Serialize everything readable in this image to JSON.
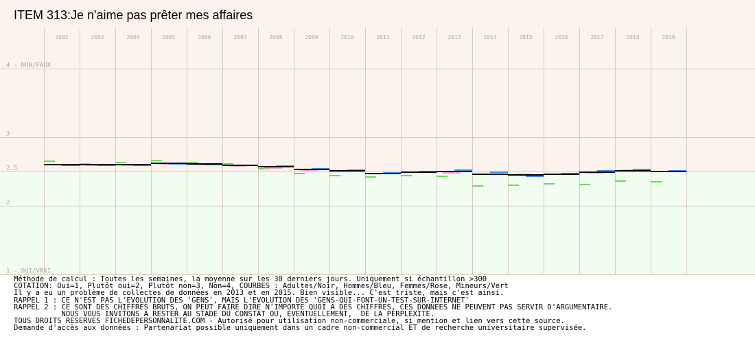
{
  "title": "ITEM 313:Je n'aime pas prêter mes affaires",
  "colors": {
    "upper_band": "#fdf3ee",
    "lower_band": "#f0fdef",
    "grid": "#d9c9c4",
    "axis_text": "#b0a6a6",
    "adults": "#000000",
    "men": "#3d8ef0",
    "women": "#f5a2c5",
    "minors": "#66dd55"
  },
  "notes": [
    "Méthode de calcul : Toutes les semaines, la moyenne sur les 30 derniers jours. Uniquement si échantillon >300",
    "COTATION: Oui=1, Plutôt oui=2, Plutôt non=3, Non=4, COURBES : Adultes/Noir, Hommes/Bleu, Femmes/Rose, Mineurs/Vert",
    "Il y a eu un problème de collectes de données en 2013 et en 2015. Bien visible... C'est triste, mais c'est ainsi.",
    "RAPPEL 1 : CE N'EST PAS L'EVOLUTION DES 'GENS', MAIS L'EVOLUTION DES 'GENS-QUI-FONT-UN-TEST-SUR-INTERNET'",
    "RAPPEL 2 : CE SONT DES CHIFFRES BRUTS, ON PEUT FAIRE DIRE N'IMPORTE QUOI A DES CHIFFRES, CES DONNEES NE PEUVENT PAS SERVIR D'ARGUMENTAIRE.",
    "           NOUS VOUS INVITONS A RESTER AU STADE DU CONSTAT OU, EVENTUELLEMENT,  DE LA PERPLEXITE.",
    "TOUS DROITS RESERVES FICHEDEPERSONNALITE.COM - Autorisé pour utilisation non-commerciale, si mention et lien vers cette source.",
    "Demande d'accès aux données : Partenariat possible uniquement dans un cadre non-commercial ET de recherche universitaire supervisée."
  ],
  "chart_data": {
    "type": "line",
    "categories": [
      "2002",
      "2003",
      "2004",
      "2005",
      "2006",
      "2007",
      "2008",
      "2009",
      "2010",
      "2011",
      "2012",
      "2013",
      "2014",
      "2015",
      "2016",
      "2017",
      "2018",
      "2019"
    ],
    "ylim": [
      1,
      4
    ],
    "y_ticks": [
      {
        "value": 4,
        "label": "4 - NON/FAUX"
      },
      {
        "value": 3,
        "label": "3"
      },
      {
        "value": 2.5,
        "label": "2.5"
      },
      {
        "value": 2,
        "label": "2"
      },
      {
        "value": 1,
        "label": "1 - OUI/VRAI"
      }
    ],
    "background_split": 2.5,
    "grid": true,
    "series": [
      {
        "name": "Adultes",
        "color": "#000000",
        "values": [
          2.6,
          2.6,
          2.6,
          2.62,
          2.61,
          2.59,
          2.57,
          2.53,
          2.51,
          2.47,
          2.49,
          2.5,
          2.46,
          2.45,
          2.46,
          2.49,
          2.51,
          2.5
        ]
      },
      {
        "name": "Hommes",
        "color": "#3d8ef0",
        "values": [
          2.59,
          2.59,
          2.59,
          2.61,
          2.6,
          2.59,
          2.58,
          2.54,
          2.52,
          2.48,
          2.5,
          2.52,
          2.49,
          2.43,
          2.47,
          2.51,
          2.53,
          2.51
        ]
      },
      {
        "name": "Femmes",
        "color": "#f5a2c5",
        "values": [
          2.6,
          2.59,
          2.59,
          2.61,
          2.6,
          2.58,
          2.55,
          2.52,
          2.5,
          2.47,
          2.49,
          2.48,
          2.46,
          2.46,
          2.46,
          2.48,
          2.52,
          2.5
        ]
      },
      {
        "name": "Mineurs",
        "color": "#66dd55",
        "values": [
          2.65,
          2.61,
          2.63,
          2.66,
          2.63,
          2.61,
          2.54,
          2.47,
          2.44,
          2.42,
          2.44,
          2.43,
          2.29,
          2.3,
          2.32,
          2.31,
          2.36,
          2.35
        ]
      }
    ]
  }
}
